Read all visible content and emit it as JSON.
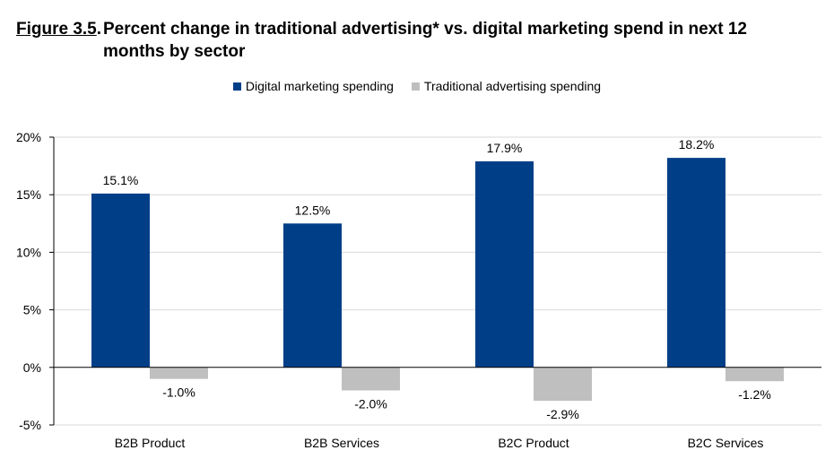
{
  "figure": {
    "label": "Figure 3.5",
    "suffix": ".",
    "title": "Percent change in traditional advertising* vs. digital marketing spend in next 12 months by sector"
  },
  "colors": {
    "digital": "#003f87",
    "traditional": "#bfbfbf"
  },
  "chart_data": {
    "type": "bar",
    "title": "Percent change in traditional advertising* vs. digital marketing spend in next 12 months by sector",
    "categories": [
      "B2B Product",
      "B2B Services",
      "B2C Product",
      "B2C Services"
    ],
    "series": [
      {
        "name": "Digital marketing spending",
        "values": [
          15.1,
          12.5,
          17.9,
          18.2
        ],
        "labels": [
          "15.1%",
          "12.5%",
          "17.9%",
          "18.2%"
        ]
      },
      {
        "name": "Traditional advertising spending",
        "values": [
          -1.0,
          -2.0,
          -2.9,
          -1.2
        ],
        "labels": [
          "-1.0%",
          "-2.0%",
          "-2.9%",
          "-1.2%"
        ]
      }
    ],
    "ylim": [
      -5,
      20
    ],
    "yticks": [
      20,
      15,
      10,
      5,
      0,
      -5
    ],
    "ytick_labels": [
      "20%",
      "15%",
      "10%",
      "5%",
      "0%",
      "-5%"
    ],
    "xlabel": "",
    "ylabel": "",
    "grid": true,
    "legend": "top-center"
  }
}
